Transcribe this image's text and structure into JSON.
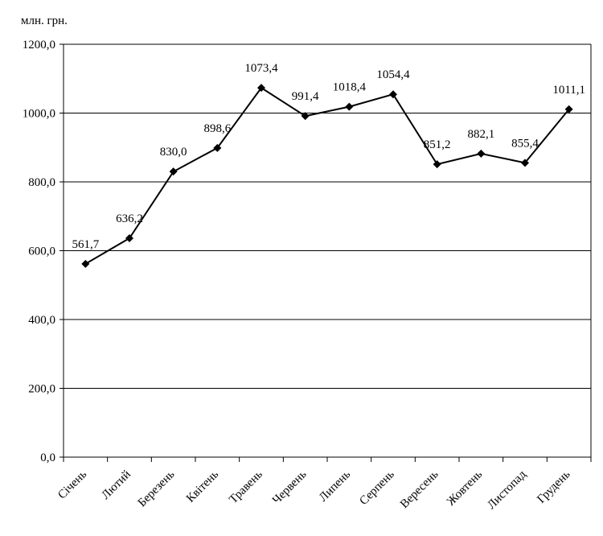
{
  "chart_data": {
    "type": "line",
    "unit_label": "млн. грн.",
    "categories": [
      "Січень",
      "Лютий",
      "Березень",
      "Квітень",
      "Травень",
      "Червень",
      "Липень",
      "Серпень",
      "Вересень",
      "Жовтень",
      "Листопад",
      "Грудень"
    ],
    "values": [
      561.7,
      636.2,
      830.0,
      898.6,
      1073.4,
      991.4,
      1018.4,
      1054.4,
      851.2,
      882.1,
      855.4,
      1011.1
    ],
    "value_labels": [
      "561,7",
      "636,2",
      "830,0",
      "898,6",
      "1073,4",
      "991,4",
      "1018,4",
      "1054,4",
      "851,2",
      "882,1",
      "855,4",
      "1011,1"
    ],
    "y_ticks": [
      0,
      200,
      400,
      600,
      800,
      1000,
      1200
    ],
    "y_tick_labels": [
      "0,0",
      "200,0",
      "400,0",
      "600,0",
      "800,0",
      "1000,0",
      "1200,0"
    ],
    "ylim": [
      0,
      1200
    ],
    "grid": true,
    "legend": "none",
    "line_color": "#000000",
    "marker": "diamond"
  }
}
